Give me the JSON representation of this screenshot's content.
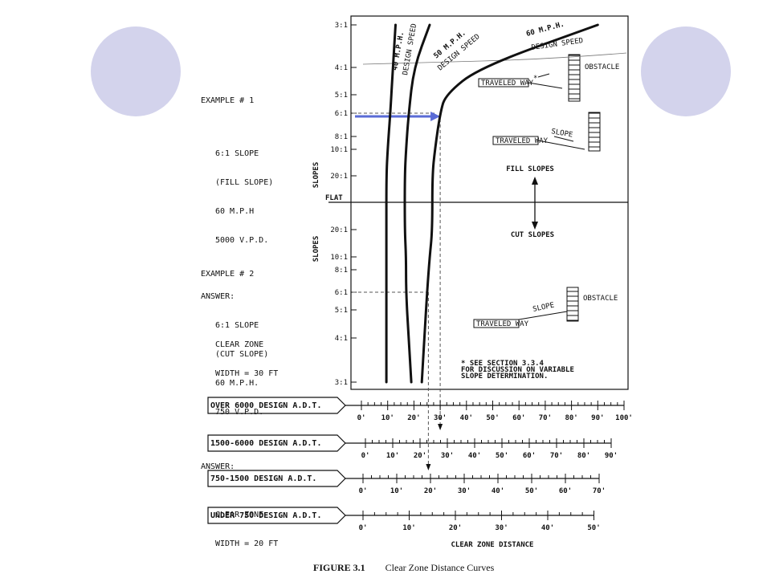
{
  "slide": {
    "accent_color": "#d3d3ec",
    "arrow_color": "#5a6bd6"
  },
  "chart_data": {
    "type": "line",
    "title": "FIGURE 3.1",
    "subtitle": "Clear Zone Distance Curves",
    "xlabel": "CLEAR ZONE DISTANCE",
    "ylabel_fill": "SLOPES",
    "ylabel_cut": "SLOPES",
    "fill_region_label": "FILL SLOPES",
    "cut_region_label": "CUT SLOPES",
    "flat_label": "FLAT",
    "slope_ticks_fill": [
      "3:1",
      "4:1",
      "5:1",
      "6:1",
      "8:1",
      "10:1",
      "20:1"
    ],
    "slope_ticks_cut": [
      "20:1",
      "10:1",
      "8:1",
      "6:1",
      "5:1",
      "4:1",
      "3:1"
    ],
    "x_unit_scale": "OVER 6000 DESIGN A.D.T.",
    "xlim": [
      0,
      100
    ],
    "series": [
      {
        "name": "40 M.P.H.",
        "sublabel": "DESIGN SPEED",
        "points_fill": [
          [
            13,
            "3:1"
          ],
          [
            12,
            "4:1"
          ],
          [
            11,
            "6:1"
          ],
          [
            10,
            "10:1"
          ],
          [
            9.5,
            "20:1"
          ]
        ],
        "points_cut": [
          [
            9.5,
            "20:1"
          ],
          [
            9.5,
            "10:1"
          ],
          [
            9.5,
            "6:1"
          ],
          [
            9.5,
            "4:1"
          ],
          [
            9.5,
            "3:1"
          ]
        ]
      },
      {
        "name": "50 M.P.H.",
        "sublabel": "DESIGN SPEED",
        "points_fill": [
          [
            26,
            "3:1"
          ],
          [
            20,
            "4:1"
          ],
          [
            18,
            "6:1"
          ],
          [
            17,
            "10:1"
          ],
          [
            16.5,
            "20:1"
          ]
        ],
        "points_cut": [
          [
            16.5,
            "20:1"
          ],
          [
            17,
            "10:1"
          ],
          [
            17,
            "6:1"
          ],
          [
            18,
            "4:1"
          ],
          [
            19,
            "3:1"
          ]
        ]
      },
      {
        "name": "60 M.P.H.",
        "sublabel": "DESIGN SPEED",
        "points_fill": [
          [
            90,
            "3:1"
          ],
          [
            45,
            "4:1"
          ],
          [
            32,
            "5:1"
          ],
          [
            30,
            "6:1"
          ],
          [
            28,
            "10:1"
          ],
          [
            27,
            "20:1"
          ]
        ],
        "points_cut": [
          [
            27,
            "20:1"
          ],
          [
            26,
            "10:1"
          ],
          [
            25,
            "6:1"
          ],
          [
            24,
            "4:1"
          ],
          [
            23,
            "3:1"
          ]
        ]
      }
    ],
    "scales": [
      {
        "label": "OVER 6000 DESIGN A.D.T.",
        "max": 100,
        "ticks": [
          "0'",
          "10'",
          "20'",
          "30'",
          "40'",
          "50'",
          "60'",
          "70'",
          "80'",
          "90'",
          "100'"
        ]
      },
      {
        "label": "1500-6000 DESIGN A.D.T.",
        "max": 90,
        "ticks": [
          "0'",
          "10'",
          "20'",
          "30'",
          "40'",
          "50'",
          "60'",
          "70'",
          "80'",
          "90'"
        ]
      },
      {
        "label": "750-1500 DESIGN A.D.T.",
        "max": 70,
        "ticks": [
          "0'",
          "10'",
          "20'",
          "30'",
          "40'",
          "50'",
          "60'",
          "70'"
        ]
      },
      {
        "label": "UNDER 750 DESIGN A.D.T.",
        "max": 50,
        "ticks": [
          "0'",
          "10'",
          "20'",
          "30'",
          "40'",
          "50'"
        ]
      }
    ],
    "example1": {
      "heading": "EXAMPLE # 1",
      "lines": [
        "6:1 SLOPE",
        "(FILL SLOPE)",
        "60 M.P.H",
        "5000 V.P.D."
      ],
      "answer_heading": "ANSWER:",
      "answer_lines": [
        "CLEAR ZONE",
        "WIDTH = 30 FT"
      ]
    },
    "example2": {
      "heading": "EXAMPLE # 2",
      "lines": [
        "6:1 SLOPE",
        "(CUT SLOPE)",
        "60 M.P.H.",
        "750 V.P.D."
      ],
      "answer_heading": "ANSWER:",
      "answer_lines": [
        "CLEAR ZONE",
        "WIDTH = 20 FT"
      ]
    },
    "annotations": {
      "traveled_way": "TRAVELED WAY",
      "obstacle": "OBSTACLE",
      "slope": "SLOPE",
      "footnote": [
        "* SEE SECTION 3.3.4",
        "FOR DISCUSSION ON VARIABLE",
        "SLOPE DETERMINATION."
      ]
    }
  }
}
